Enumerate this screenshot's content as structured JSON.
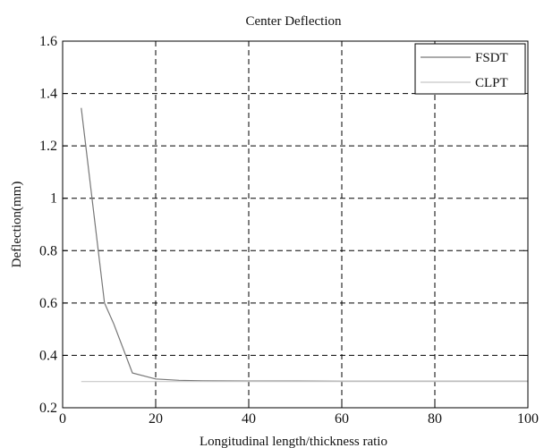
{
  "chart_data": {
    "type": "line",
    "title": "Center Deflection",
    "xlabel": "Longitudinal length/thickness ratio",
    "ylabel": "Deflection(mm)",
    "xlim": [
      0,
      100
    ],
    "ylim": [
      0.2,
      1.6
    ],
    "xticks": [
      0,
      20,
      40,
      60,
      80,
      100
    ],
    "yticks": [
      0.2,
      0.4,
      0.6,
      0.8,
      1,
      1.2,
      1.4,
      1.6
    ],
    "grid": true,
    "legend_position": "top-right",
    "series": [
      {
        "name": "FSDT",
        "color": "#777777",
        "x": [
          4,
          9,
          11,
          15,
          20,
          25,
          30,
          40,
          50,
          60,
          70,
          80,
          90,
          100
        ],
        "y": [
          1.345,
          0.6,
          0.52,
          0.333,
          0.31,
          0.305,
          0.303,
          0.302,
          0.302,
          0.301,
          0.301,
          0.301,
          0.301,
          0.301
        ]
      },
      {
        "name": "CLPT",
        "color": "#c8c8c8",
        "x": [
          4,
          100
        ],
        "y": [
          0.3,
          0.3
        ]
      }
    ]
  }
}
